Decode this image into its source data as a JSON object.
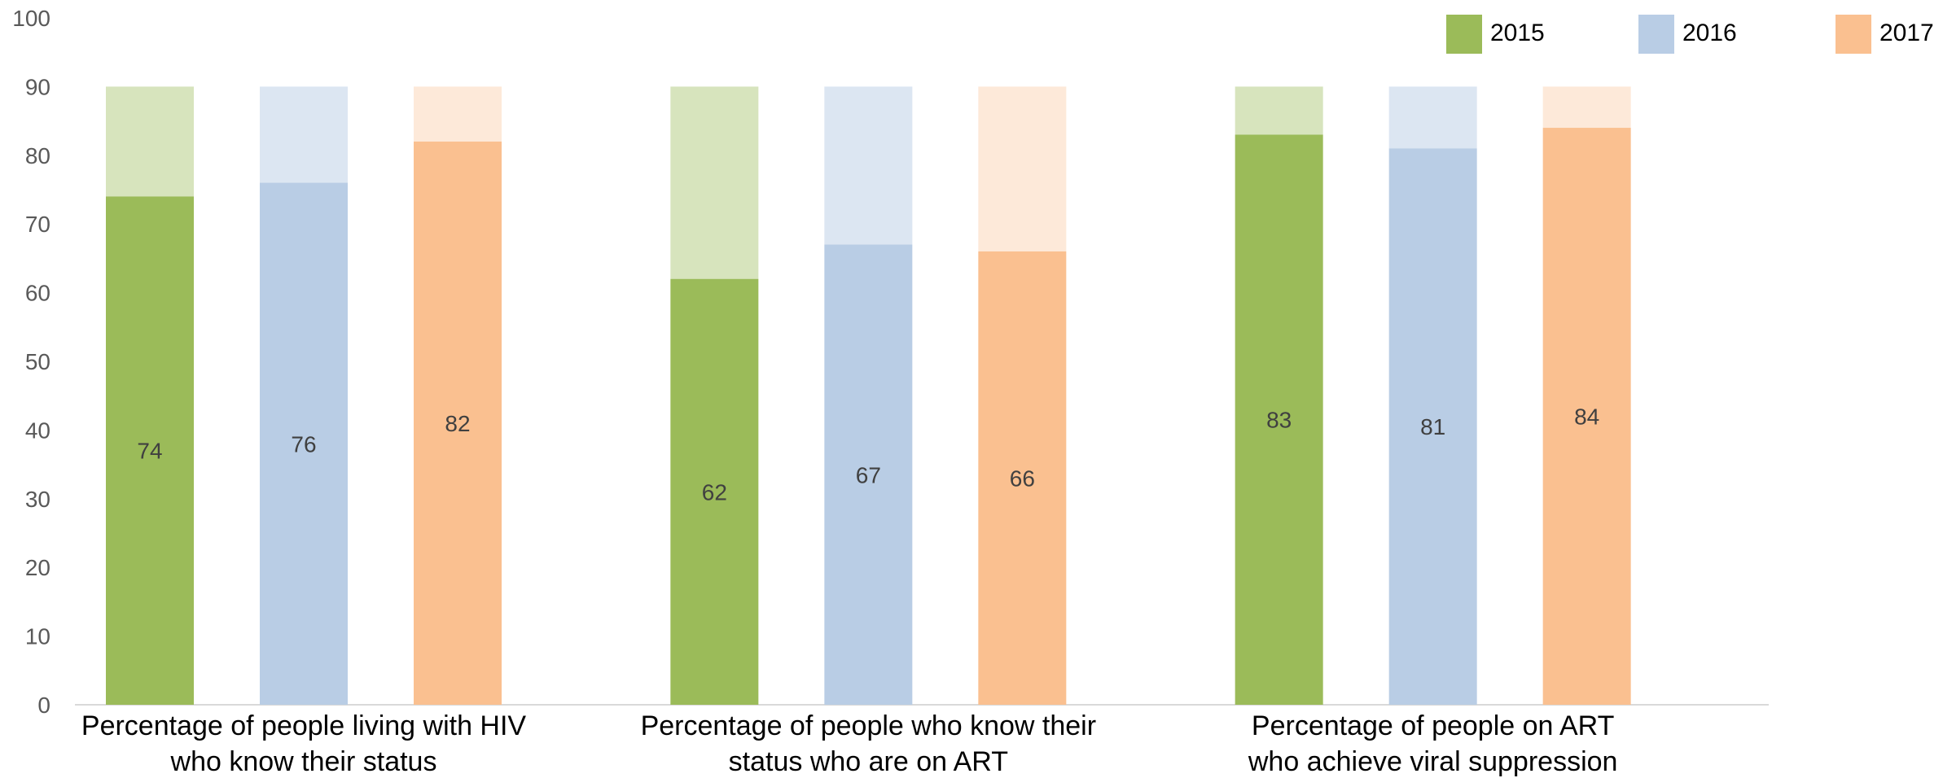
{
  "chart_data": {
    "type": "bar",
    "title": "",
    "xlabel": "",
    "ylabel": "",
    "ylim": [
      0,
      100
    ],
    "yticks": [
      0,
      10,
      20,
      30,
      40,
      50,
      60,
      70,
      80,
      90,
      100
    ],
    "target": 90,
    "grid": false,
    "legend_position": "top-right",
    "categories": [
      [
        "Percentage of people living with HIV",
        "who know their status"
      ],
      [
        "Percentage of people who know their",
        "status who are on ART"
      ],
      [
        "Percentage of people on ART",
        "who achieve viral suppression"
      ]
    ],
    "series": [
      {
        "name": "2015",
        "color": "#9BBB59",
        "target_color": "#D7E4BD",
        "values": [
          74,
          62,
          83
        ]
      },
      {
        "name": "2016",
        "color": "#B9CDE5",
        "target_color": "#DCE6F2",
        "values": [
          76,
          67,
          81
        ]
      },
      {
        "name": "2017",
        "color": "#FAC090",
        "target_color": "#FDE9D9",
        "values": [
          82,
          66,
          84
        ]
      }
    ]
  }
}
